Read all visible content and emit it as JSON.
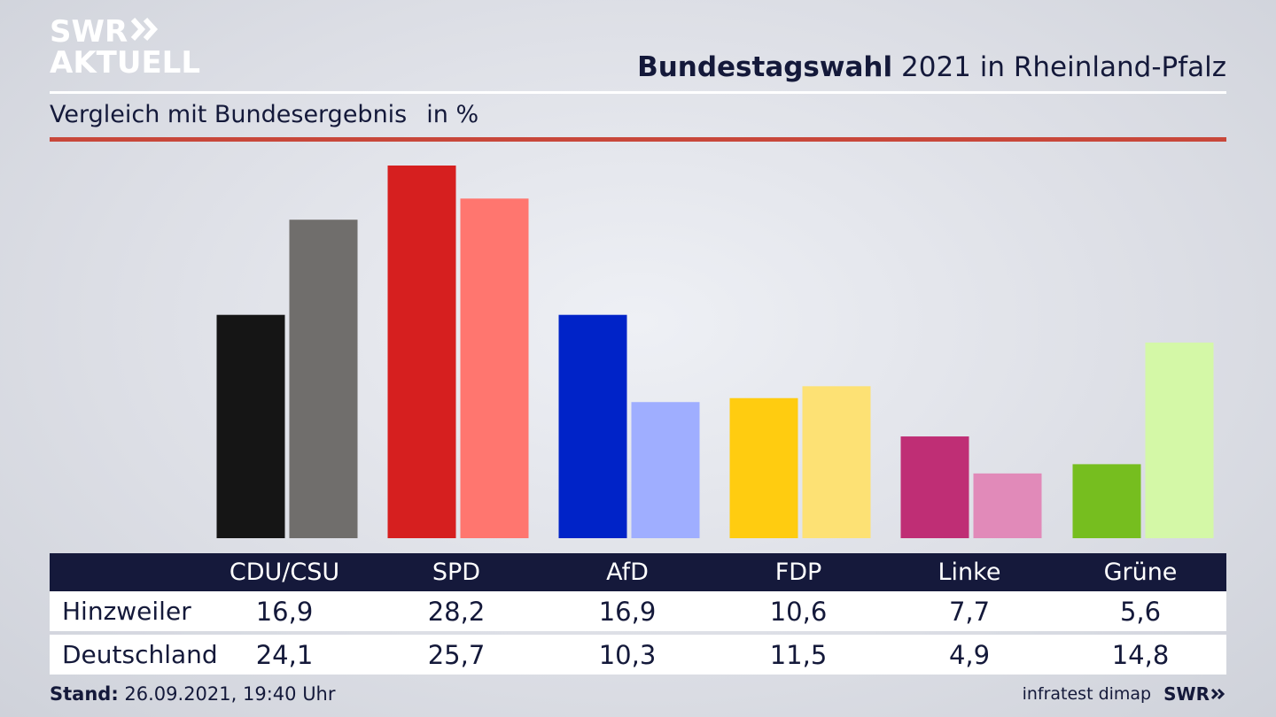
{
  "logo": {
    "line1": "SWR",
    "line2": "AKTUELL",
    "arrows_icon": "double-chevron-right-icon"
  },
  "header": {
    "title_bold": "Bundestagswahl",
    "title_rest": "2021 in Rheinland-Pfalz",
    "subtitle": "Vergleich mit Bundesergebnis",
    "unit": "in %"
  },
  "colors": {
    "header_bg": "#15193b",
    "accent_rule": "#c8473a",
    "CDU/CSU": [
      "#151515",
      "#706e6c"
    ],
    "SPD": [
      "#d61f1f",
      "#ff766f"
    ],
    "AfD": [
      "#0023c8",
      "#9faeff"
    ],
    "FDP": [
      "#ffcc10",
      "#fde174"
    ],
    "Linke": [
      "#bf2e75",
      "#e18ab9"
    ],
    "Grüne": [
      "#76be1f",
      "#d4f8a7"
    ]
  },
  "chart_data": {
    "type": "bar",
    "categories": [
      "CDU/CSU",
      "SPD",
      "AfD",
      "FDP",
      "Linke",
      "Grüne"
    ],
    "series": [
      {
        "name": "Hinzweiler",
        "values": [
          16.9,
          28.2,
          16.9,
          10.6,
          7.7,
          5.6
        ]
      },
      {
        "name": "Deutschland",
        "values": [
          24.1,
          25.7,
          10.3,
          11.5,
          4.9,
          14.8
        ]
      }
    ],
    "ylim": [
      0,
      28.2
    ],
    "grid": false
  },
  "table": {
    "headers": [
      "CDU/CSU",
      "SPD",
      "AfD",
      "FDP",
      "Linke",
      "Grüne"
    ],
    "rows": [
      {
        "label": "Hinzweiler",
        "values": [
          "16,9",
          "28,2",
          "16,9",
          "10,6",
          "7,7",
          "5,6"
        ]
      },
      {
        "label": "Deutschland",
        "values": [
          "24,1",
          "25,7",
          "10,3",
          "11,5",
          "4,9",
          "14,8"
        ]
      }
    ]
  },
  "footer": {
    "stand_label": "Stand:",
    "stand_value": "26.09.2021, 19:40 Uhr",
    "source": "infratest dimap",
    "brand": "SWR"
  }
}
